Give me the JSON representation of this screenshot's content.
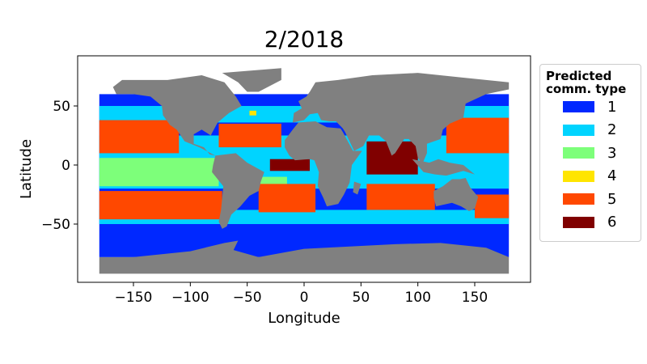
{
  "title": "2/2018",
  "chart_data": {
    "type": "scatter",
    "title": "2/2018",
    "xlabel": "Longitude",
    "ylabel": "Latitude",
    "xlim": [
      -199,
      199
    ],
    "ylim": [
      -99,
      92
    ],
    "xticks": [
      -150,
      -100,
      -50,
      0,
      50,
      100,
      150
    ],
    "yticks": [
      50,
      0,
      -50
    ],
    "xtick_labels": [
      "−150",
      "−100",
      "−50",
      "0",
      "50",
      "100",
      "150"
    ],
    "ytick_labels": [
      "50",
      "0",
      "−50"
    ],
    "legend": {
      "title": "Predicted comm. type",
      "position": "right-outside",
      "entries": [
        {
          "label": "1",
          "color": "#0028ff"
        },
        {
          "label": "2",
          "color": "#00d4ff"
        },
        {
          "label": "3",
          "color": "#7dff7a"
        },
        {
          "label": "4",
          "color": "#ffe500"
        },
        {
          "label": "5",
          "color": "#ff4800"
        },
        {
          "label": "6",
          "color": "#800000"
        }
      ]
    }
  },
  "land_color": "#808080"
}
